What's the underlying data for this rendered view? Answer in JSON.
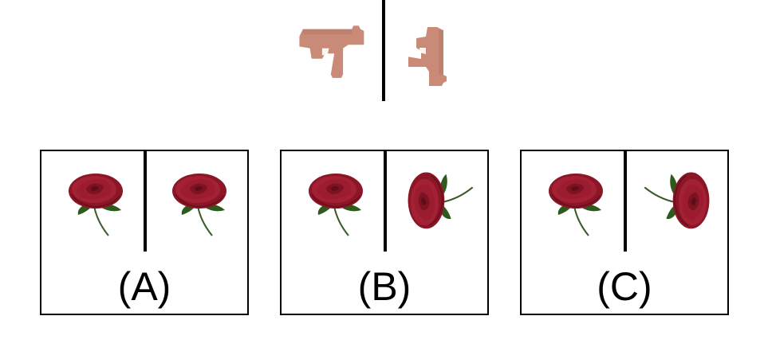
{
  "question": {
    "reference_left": "gun-icon",
    "reference_right": "gun-rotated-icon",
    "gun_color": "#c98a78"
  },
  "options": [
    {
      "label": "(A)",
      "left_icon": "rose-icon",
      "right_icon": "rose-icon"
    },
    {
      "label": "(B)",
      "left_icon": "rose-icon",
      "right_icon": "rose-rotated-icon"
    },
    {
      "label": "(C)",
      "left_icon": "rose-icon",
      "right_icon": "rose-rotated-flipped-icon"
    }
  ],
  "colors": {
    "rose": "#9b1c2e",
    "leaf": "#2e5a1e",
    "border": "#000000"
  }
}
